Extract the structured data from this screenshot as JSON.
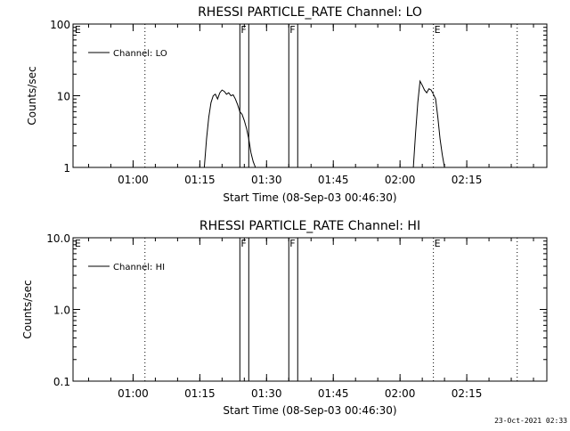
{
  "footer_timestamp": "23-Oct-2021 02:33",
  "chart_data": [
    {
      "type": "line",
      "title": "RHESSI PARTICLE_RATE Channel: LO",
      "xlabel": "Start Time (08-Sep-03 00:46:30)",
      "ylabel": "Counts/sec",
      "yscale": "log",
      "xlim": [
        "00:46:30",
        "02:33:00"
      ],
      "ylim": [
        1,
        100
      ],
      "x_ticks": [
        "01:00",
        "01:15",
        "01:30",
        "01:45",
        "02:00",
        "02:15"
      ],
      "y_ticks": [
        "1",
        "10",
        "100"
      ],
      "legend": "top-left",
      "grid": false,
      "series": [
        {
          "name": "Channel: LO",
          "segments": [
            [
              [
                "01:16:00",
                1.0
              ],
              [
                "01:16:30",
                2.5
              ],
              [
                "01:17:00",
                5.0
              ],
              [
                "01:17:30",
                8.0
              ],
              [
                "01:18:00",
                10.0
              ],
              [
                "01:18:30",
                10.5
              ],
              [
                "01:19:00",
                9.0
              ],
              [
                "01:19:30",
                11.0
              ],
              [
                "01:20:00",
                12.0
              ],
              [
                "01:20:30",
                11.5
              ],
              [
                "01:21:00",
                10.5
              ],
              [
                "01:21:30",
                11.0
              ],
              [
                "01:22:00",
                10.0
              ],
              [
                "01:22:30",
                10.3
              ],
              [
                "01:23:00",
                9.0
              ],
              [
                "01:23:30",
                7.5
              ],
              [
                "01:24:00",
                6.0
              ],
              [
                "01:24:30",
                5.5
              ],
              [
                "01:25:00",
                4.5
              ],
              [
                "01:25:30",
                3.5
              ],
              [
                "01:26:00",
                2.5
              ],
              [
                "01:26:30",
                1.6
              ],
              [
                "01:27:00",
                1.2
              ],
              [
                "01:27:30",
                1.0
              ]
            ],
            [
              [
                "02:03:00",
                1.0
              ],
              [
                "02:03:30",
                3.0
              ],
              [
                "02:04:00",
                8.0
              ],
              [
                "02:04:30",
                16.0
              ],
              [
                "02:05:00",
                14.0
              ],
              [
                "02:05:30",
                12.0
              ],
              [
                "02:06:00",
                11.0
              ],
              [
                "02:06:30",
                12.5
              ],
              [
                "02:07:00",
                12.0
              ],
              [
                "02:07:30",
                10.5
              ],
              [
                "02:08:00",
                9.0
              ],
              [
                "02:08:30",
                5.0
              ],
              [
                "02:09:00",
                2.5
              ],
              [
                "02:09:30",
                1.5
              ],
              [
                "02:10:00",
                1.0
              ]
            ]
          ]
        }
      ],
      "markers": [
        {
          "time": "00:46:40",
          "label": "E",
          "style": "none"
        },
        {
          "time": "01:02:40",
          "label": "",
          "style": "dotted"
        },
        {
          "time": "01:24:00",
          "label": "F",
          "style": "solid"
        },
        {
          "time": "01:26:00",
          "label": "",
          "style": "solid"
        },
        {
          "time": "01:35:00",
          "label": "F",
          "style": "solid"
        },
        {
          "time": "01:37:00",
          "label": "",
          "style": "solid"
        },
        {
          "time": "02:07:30",
          "label": "E",
          "style": "dotted"
        },
        {
          "time": "02:26:20",
          "label": "",
          "style": "dotted"
        }
      ]
    },
    {
      "type": "line",
      "title": "RHESSI PARTICLE_RATE Channel: HI",
      "xlabel": "Start Time (08-Sep-03 00:46:30)",
      "ylabel": "Counts/sec",
      "yscale": "log",
      "xlim": [
        "00:46:30",
        "02:33:00"
      ],
      "ylim": [
        0.1,
        10
      ],
      "x_ticks": [
        "01:00",
        "01:15",
        "01:30",
        "01:45",
        "02:00",
        "02:15"
      ],
      "y_ticks": [
        "0.1",
        "1.0",
        "10.0"
      ],
      "legend": "top-left",
      "grid": false,
      "series": [
        {
          "name": "Channel: HI",
          "segments": []
        }
      ],
      "markers": [
        {
          "time": "00:46:40",
          "label": "E",
          "style": "none"
        },
        {
          "time": "01:02:40",
          "label": "",
          "style": "dotted"
        },
        {
          "time": "01:24:00",
          "label": "F",
          "style": "solid"
        },
        {
          "time": "01:26:00",
          "label": "",
          "style": "solid"
        },
        {
          "time": "01:35:00",
          "label": "F",
          "style": "solid"
        },
        {
          "time": "01:37:00",
          "label": "",
          "style": "solid"
        },
        {
          "time": "02:07:30",
          "label": "E",
          "style": "dotted"
        },
        {
          "time": "02:26:20",
          "label": "",
          "style": "dotted"
        }
      ]
    }
  ]
}
